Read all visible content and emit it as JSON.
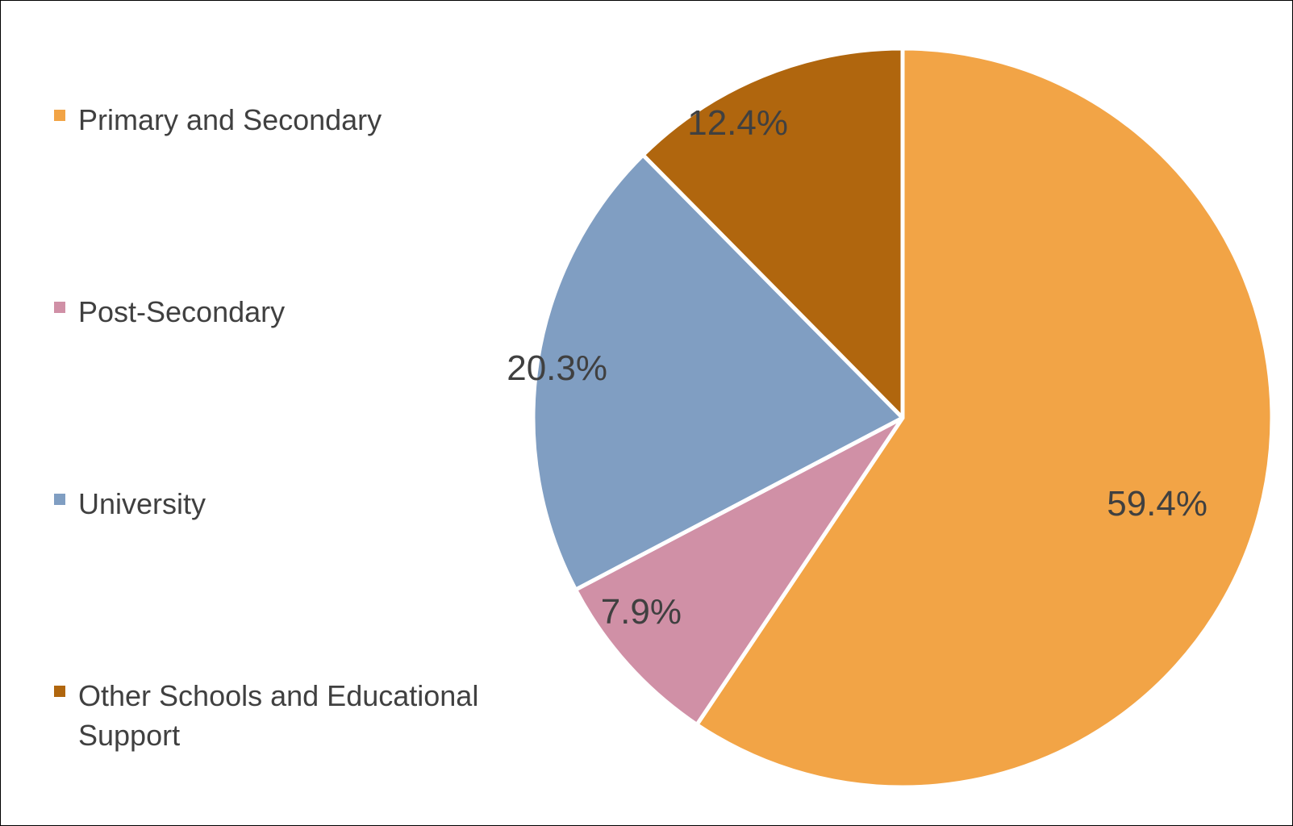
{
  "chart_data": {
    "type": "pie",
    "title": "",
    "legend_position": "left",
    "slices": [
      {
        "label": "Primary and Secondary",
        "value": 59.4,
        "display": "59.4%",
        "color": "#F2A446"
      },
      {
        "label": "Post-Secondary",
        "value": 7.9,
        "display": "7.9%",
        "color": "#D090A6"
      },
      {
        "label": "University",
        "value": 20.3,
        "display": "20.3%",
        "color": "#809EC2"
      },
      {
        "label": "Other Schools and Educational Support",
        "value": 12.4,
        "display": "12.4%",
        "color": "#B0660E"
      }
    ]
  }
}
